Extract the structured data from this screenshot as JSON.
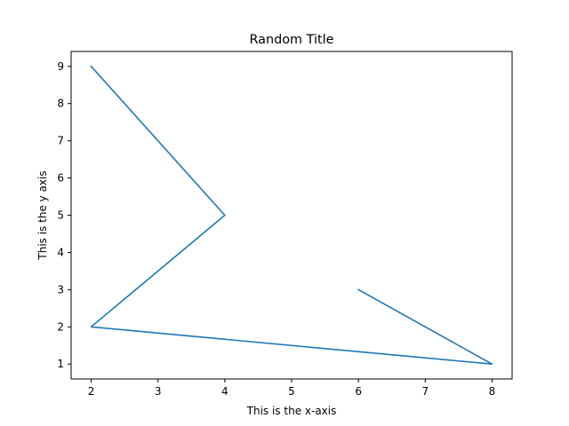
{
  "chart_data": {
    "type": "line",
    "title": "Random Title",
    "xlabel": "This is the x-axis",
    "ylabel": "This is the y axis",
    "xlim": [
      1.7,
      8.3
    ],
    "ylim": [
      0.6,
      9.4
    ],
    "xticks": [
      2,
      3,
      4,
      5,
      6,
      7,
      8
    ],
    "yticks": [
      1,
      2,
      3,
      4,
      5,
      6,
      7,
      8,
      9
    ],
    "grid": false,
    "series": [
      {
        "color": "#1f77b4",
        "x": [
          2,
          4,
          2,
          8,
          6
        ],
        "y": [
          9,
          5,
          2,
          1,
          3
        ]
      }
    ]
  }
}
